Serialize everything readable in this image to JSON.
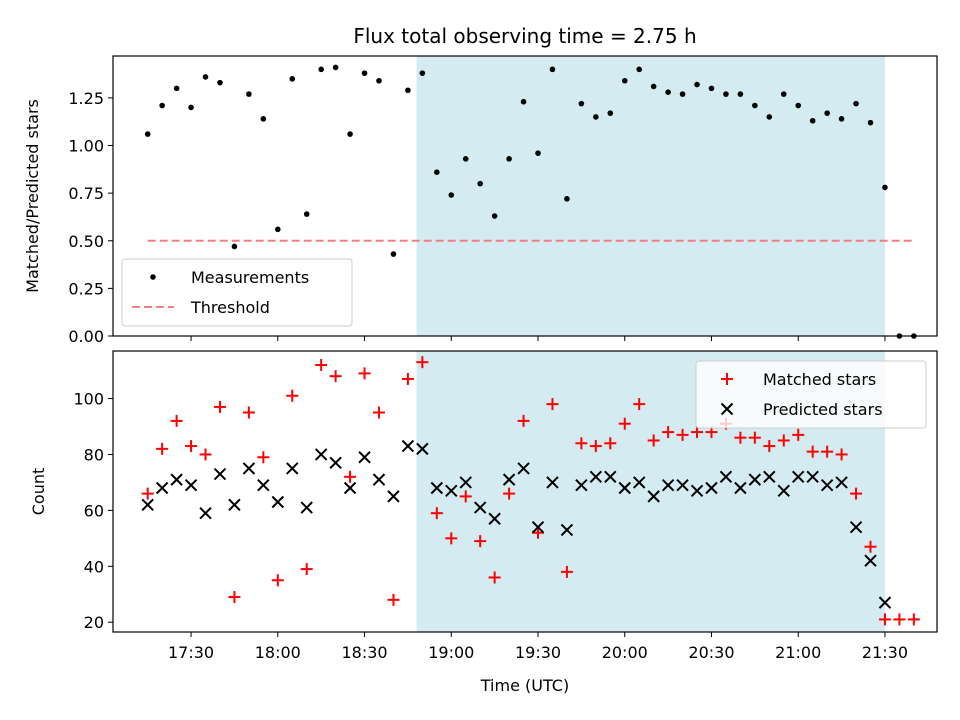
{
  "chart_data": [
    {
      "type": "scatter",
      "title": "Flux total observing time = 2.75 h",
      "ylabel": "Matched/Predicted stars",
      "xlabel": "",
      "xlim": [
        "17:03",
        "21:48"
      ],
      "ylim": [
        0,
        1.47
      ],
      "yticks": [
        "0.00",
        "0.25",
        "0.50",
        "0.75",
        "1.00",
        "1.25"
      ],
      "ytick_values": [
        0,
        0.25,
        0.5,
        0.75,
        1.0,
        1.25
      ],
      "shaded_region": [
        "18:48",
        "21:30"
      ],
      "shaded_color": "#d4ebf1",
      "legend_position": "lower-left",
      "legend": [
        "Measurements",
        "Threshold"
      ],
      "series": [
        {
          "name": "Measurements",
          "color": "#000000",
          "marker": "dot",
          "x": [
            "17:15",
            "17:20",
            "17:25",
            "17:30",
            "17:35",
            "17:40",
            "17:45",
            "17:50",
            "17:55",
            "18:00",
            "18:05",
            "18:10",
            "18:15",
            "18:20",
            "18:25",
            "18:30",
            "18:35",
            "18:40",
            "18:45",
            "18:50",
            "18:55",
            "19:00",
            "19:05",
            "19:10",
            "19:15",
            "19:20",
            "19:25",
            "19:30",
            "19:35",
            "19:40",
            "19:45",
            "19:50",
            "19:55",
            "20:00",
            "20:05",
            "20:10",
            "20:15",
            "20:20",
            "20:25",
            "20:30",
            "20:35",
            "20:40",
            "20:45",
            "20:50",
            "20:55",
            "21:00",
            "21:05",
            "21:10",
            "21:15",
            "21:20",
            "21:25",
            "21:30",
            "21:35",
            "21:40"
          ],
          "y": [
            1.06,
            1.21,
            1.3,
            1.2,
            1.36,
            1.33,
            0.47,
            1.27,
            1.14,
            0.56,
            1.35,
            0.64,
            1.4,
            1.41,
            1.06,
            1.38,
            1.34,
            0.43,
            1.29,
            1.38,
            0.86,
            0.74,
            0.93,
            0.8,
            0.63,
            0.93,
            1.23,
            0.96,
            1.4,
            0.72,
            1.22,
            1.15,
            1.17,
            1.34,
            1.4,
            1.31,
            1.28,
            1.27,
            1.32,
            1.3,
            1.27,
            1.27,
            1.21,
            1.15,
            1.27,
            1.21,
            1.13,
            1.17,
            1.14,
            1.22,
            1.12,
            0.78,
            0.0,
            0.0
          ]
        },
        {
          "name": "Threshold",
          "color": "#f08080",
          "style": "dashed",
          "x": [
            "17:15",
            "21:40"
          ],
          "y": [
            0.5,
            0.5
          ]
        }
      ]
    },
    {
      "type": "scatter",
      "title": "",
      "ylabel": "Count",
      "xlabel": "Time (UTC)",
      "xlim": [
        "17:03",
        "21:48"
      ],
      "ylim": [
        16.5,
        117
      ],
      "yticks": [
        "20",
        "40",
        "60",
        "80",
        "100"
      ],
      "ytick_values": [
        20,
        40,
        60,
        80,
        100
      ],
      "xticks": [
        "17:30",
        "18:00",
        "18:30",
        "19:00",
        "19:30",
        "20:00",
        "20:30",
        "21:00",
        "21:30"
      ],
      "shaded_region": [
        "18:48",
        "21:30"
      ],
      "shaded_color": "#d4ebf1",
      "legend_position": "upper-right",
      "legend": [
        "Matched stars",
        "Predicted stars"
      ],
      "series": [
        {
          "name": "Matched stars",
          "color": "#ff0000",
          "marker": "plus",
          "x": [
            "17:15",
            "17:20",
            "17:25",
            "17:30",
            "17:35",
            "17:40",
            "17:45",
            "17:50",
            "17:55",
            "18:00",
            "18:05",
            "18:10",
            "18:15",
            "18:20",
            "18:25",
            "18:30",
            "18:35",
            "18:40",
            "18:45",
            "18:50",
            "18:55",
            "19:00",
            "19:05",
            "19:10",
            "19:15",
            "19:20",
            "19:25",
            "19:30",
            "19:35",
            "19:40",
            "19:45",
            "19:50",
            "19:55",
            "20:00",
            "20:05",
            "20:10",
            "20:15",
            "20:20",
            "20:25",
            "20:30",
            "20:35",
            "20:40",
            "20:45",
            "20:50",
            "20:55",
            "21:00",
            "21:05",
            "21:10",
            "21:15",
            "21:20",
            "21:25",
            "21:30",
            "21:35",
            "21:40"
          ],
          "y": [
            66,
            82,
            92,
            83,
            80,
            97,
            29,
            95,
            79,
            35,
            101,
            39,
            112,
            108,
            72,
            109,
            95,
            28,
            107,
            113,
            59,
            50,
            65,
            49,
            36,
            66,
            92,
            52,
            98,
            38,
            84,
            83,
            84,
            91,
            98,
            85,
            88,
            87,
            88,
            88,
            91,
            86,
            86,
            83,
            85,
            87,
            81,
            81,
            80,
            66,
            47,
            21,
            21,
            21
          ]
        },
        {
          "name": "Predicted stars",
          "color": "#000000",
          "marker": "x",
          "x": [
            "17:15",
            "17:20",
            "17:25",
            "17:30",
            "17:35",
            "17:40",
            "17:45",
            "17:50",
            "17:55",
            "18:00",
            "18:05",
            "18:10",
            "18:15",
            "18:20",
            "18:25",
            "18:30",
            "18:35",
            "18:40",
            "18:45",
            "18:50",
            "18:55",
            "19:00",
            "19:05",
            "19:10",
            "19:15",
            "19:20",
            "19:25",
            "19:30",
            "19:35",
            "19:40",
            "19:45",
            "19:50",
            "19:55",
            "20:00",
            "20:05",
            "20:10",
            "20:15",
            "20:20",
            "20:25",
            "20:30",
            "20:35",
            "20:40",
            "20:45",
            "20:50",
            "20:55",
            "21:00",
            "21:05",
            "21:10",
            "21:15",
            "21:20",
            "21:25",
            "21:30"
          ],
          "y": [
            62,
            68,
            71,
            69,
            59,
            73,
            62,
            75,
            69,
            63,
            75,
            61,
            80,
            77,
            68,
            79,
            71,
            65,
            83,
            82,
            68,
            67,
            70,
            61,
            57,
            71,
            75,
            54,
            70,
            53,
            69,
            72,
            72,
            68,
            70,
            65,
            69,
            69,
            67,
            68,
            72,
            68,
            71,
            72,
            67,
            72,
            72,
            69,
            70,
            54,
            42,
            27
          ]
        }
      ]
    }
  ]
}
